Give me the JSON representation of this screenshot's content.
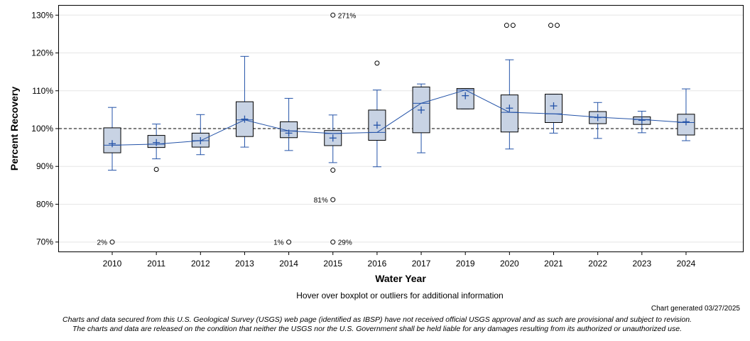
{
  "chart_data": {
    "type": "boxplot",
    "title": "",
    "xlabel": "Water Year",
    "ylabel": "Percent Recovery",
    "ylim": [
      67.5,
      132.5
    ],
    "yticks": [
      70,
      80,
      90,
      100,
      110,
      120,
      130
    ],
    "ytick_labels": [
      "70%",
      "80%",
      "90%",
      "100%",
      "110%",
      "120%",
      "130%"
    ],
    "reference_line": 100,
    "categories": [
      "2010",
      "2011",
      "2012",
      "2013",
      "2014",
      "2015",
      "2016",
      "2017",
      "2019",
      "2020",
      "2021",
      "2022",
      "2023",
      "2024"
    ],
    "boxes": [
      {
        "year": "2010",
        "whisker_low": 89.0,
        "q1": 93.6,
        "median": 95.6,
        "q3": 100.2,
        "whisker_high": 105.6,
        "mean": 96.0
      },
      {
        "year": "2011",
        "whisker_low": 92.0,
        "q1": 95.0,
        "median": 95.9,
        "q3": 98.2,
        "whisker_high": 101.2,
        "mean": 96.3
      },
      {
        "year": "2012",
        "whisker_low": 93.1,
        "q1": 95.1,
        "median": 96.8,
        "q3": 98.8,
        "whisker_high": 103.7,
        "mean": 96.8
      },
      {
        "year": "2013",
        "whisker_low": 95.1,
        "q1": 97.9,
        "median": 102.3,
        "q3": 107.1,
        "whisker_high": 119.1,
        "mean": 102.5
      },
      {
        "year": "2014",
        "whisker_low": 94.2,
        "q1": 97.6,
        "median": 99.4,
        "q3": 101.8,
        "whisker_high": 108.0,
        "mean": 98.8
      },
      {
        "year": "2015",
        "whisker_low": 91.0,
        "q1": 95.5,
        "median": 98.7,
        "q3": 99.5,
        "whisker_high": 103.6,
        "mean": 97.5
      },
      {
        "year": "2016",
        "whisker_low": 89.9,
        "q1": 96.9,
        "median": 99.0,
        "q3": 104.9,
        "whisker_high": 110.2,
        "mean": 100.9
      },
      {
        "year": "2017",
        "whisker_low": 93.6,
        "q1": 98.9,
        "median": 106.7,
        "q3": 111.0,
        "whisker_high": 111.8,
        "mean": 104.9
      },
      {
        "year": "2019",
        "whisker_low": 105.2,
        "q1": 105.2,
        "median": 110.2,
        "q3": 110.6,
        "whisker_high": 110.6,
        "mean": 108.7
      },
      {
        "year": "2020",
        "whisker_low": 94.6,
        "q1": 99.1,
        "median": 104.3,
        "q3": 108.9,
        "whisker_high": 118.2,
        "mean": 105.4
      },
      {
        "year": "2021",
        "whisker_low": 98.8,
        "q1": 101.6,
        "median": 103.9,
        "q3": 109.1,
        "whisker_high": 109.1,
        "mean": 106.0
      },
      {
        "year": "2022",
        "whisker_low": 97.4,
        "q1": 101.3,
        "median": 103.0,
        "q3": 104.5,
        "whisker_high": 106.9,
        "mean": 102.9
      },
      {
        "year": "2023",
        "whisker_low": 98.9,
        "q1": 101.1,
        "median": 102.4,
        "q3": 103.1,
        "whisker_high": 104.6,
        "mean": 102.2
      },
      {
        "year": "2024",
        "whisker_low": 96.8,
        "q1": 98.3,
        "median": 101.6,
        "q3": 103.8,
        "whisker_high": 110.5,
        "mean": 101.8
      }
    ],
    "outliers": [
      {
        "year": "2010",
        "value": 70.0,
        "label": "2%",
        "label_side": "left"
      },
      {
        "year": "2011",
        "value": 89.2,
        "label": "",
        "label_side": "left"
      },
      {
        "year": "2014",
        "value": 70.0,
        "label": "1%",
        "label_side": "left"
      },
      {
        "year": "2015",
        "value": 130.0,
        "label": "271%",
        "label_side": "right"
      },
      {
        "year": "2015",
        "value": 89.0,
        "label": "",
        "label_side": "left"
      },
      {
        "year": "2015",
        "value": 81.2,
        "label": "81%",
        "label_side": "left"
      },
      {
        "year": "2015",
        "value": 70.0,
        "label": "29%",
        "label_side": "right"
      },
      {
        "year": "2016",
        "value": 117.3,
        "label": "",
        "label_side": "left"
      },
      {
        "year": "2020",
        "value": 127.3,
        "label": "",
        "label_side": "left",
        "pair": true
      },
      {
        "year": "2021",
        "value": 127.3,
        "label": "",
        "label_side": "left",
        "pair": true
      }
    ],
    "colors": {
      "box_fill": "#c8d3e4",
      "box_stroke": "#000000",
      "whisker": "#2453a8",
      "median_line": "#2453a8",
      "mean_marker": "#2453a8",
      "reference_line": "#555555",
      "grid": "#e6e6e6"
    }
  },
  "notes": {
    "hover": "Hover over boxplot or outliers for additional information",
    "generated": "Chart generated 03/27/2025",
    "disclaimer_line1": "Charts and data secured from this U.S. Geological Survey (USGS) web page (identified as IBSP) have not received official USGS approval and as such are provisional and subject to revision.",
    "disclaimer_line2": "The charts and data are released on the condition that neither the USGS nor the U.S. Government shall be held liable for any damages resulting from its authorized or unauthorized use."
  }
}
